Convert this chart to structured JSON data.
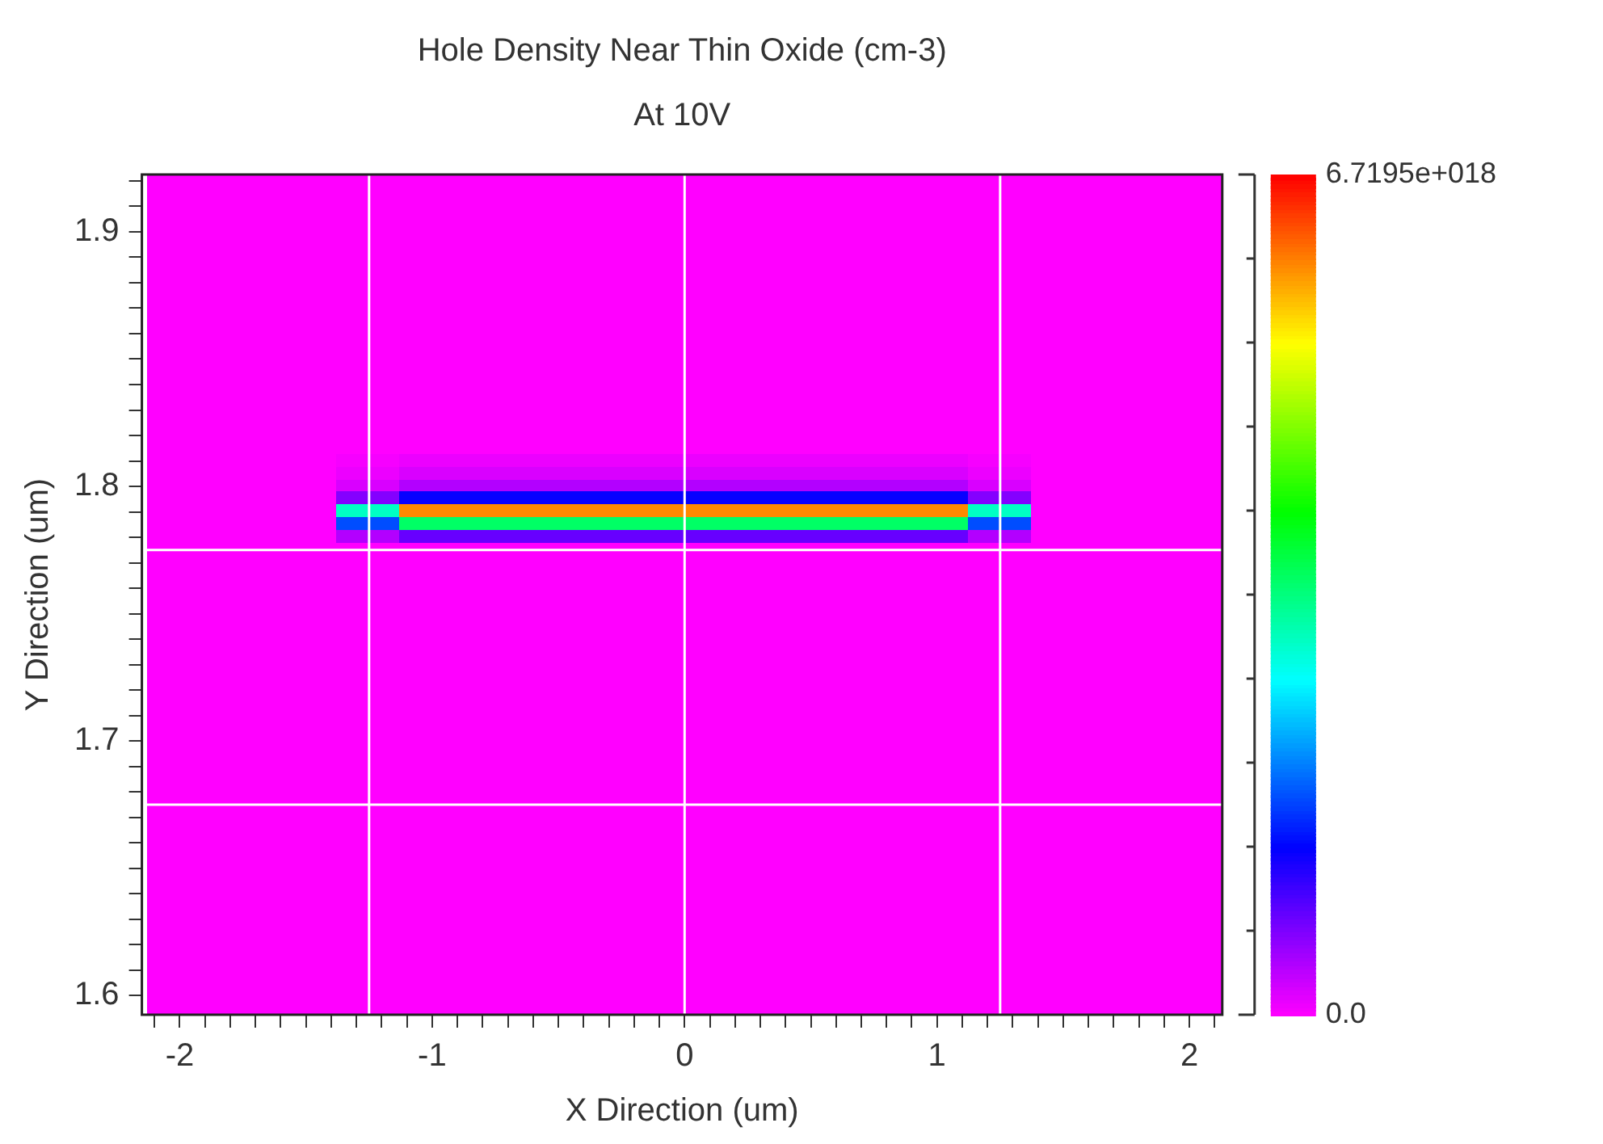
{
  "chart_data": {
    "type": "heatmap",
    "title": "Hole Density Near Thin Oxide (cm-3)",
    "subtitle": "At 10V",
    "xlabel": "X Direction (um)",
    "ylabel": "Y Direction (um)",
    "x": [
      -2,
      -1.75,
      -1.5,
      -1.25,
      -1,
      -0.75,
      -0.5,
      -0.25,
      0,
      0.25,
      0.5,
      0.75,
      1,
      1.25,
      1.5,
      1.75,
      2
    ],
    "colors": [
      "#ff00ff",
      "#0000ff",
      "#00ffff",
      "#00ff00",
      "#ffff00",
      "#ff0000"
    ],
    "clim": [
      0,
      6.7195e+18
    ],
    "cticks": [
      {
        "value": 0,
        "label": "0.0"
      },
      {
        "value": 6.7195e+17,
        "label": null
      },
      {
        "value": 1.3439e+18,
        "label": null
      },
      {
        "value": 2.01585e+18,
        "label": null
      },
      {
        "value": 2.6878e+18,
        "label": null
      },
      {
        "value": 3.35975e+18,
        "label": null
      },
      {
        "value": 4.0317e+18,
        "label": null
      },
      {
        "value": 4.70365e+18,
        "label": null
      },
      {
        "value": 5.3756e+18,
        "label": null
      },
      {
        "value": 6.04755e+18,
        "label": null
      },
      {
        "value": 6.7195e+18,
        "label": "6.7195e+018"
      }
    ],
    "xlim": [
      -2.15,
      2.13
    ],
    "ylim": [
      1.5925,
      1.9225
    ],
    "xticks": [
      {
        "value": -2.1,
        "label": null
      },
      -2,
      {
        "value": -1.9,
        "label": null
      },
      {
        "value": -1.8,
        "label": null
      },
      {
        "value": -1.7,
        "label": null
      },
      {
        "value": -1.6,
        "label": null
      },
      {
        "value": -1.5,
        "label": null
      },
      {
        "value": -1.4,
        "label": null
      },
      {
        "value": -1.3,
        "label": null
      },
      {
        "value": -1.2,
        "label": null
      },
      {
        "value": -1.1,
        "label": null
      },
      -1,
      {
        "value": -0.9,
        "label": null
      },
      {
        "value": -0.8,
        "label": null
      },
      {
        "value": -0.7,
        "label": null
      },
      {
        "value": -0.6,
        "label": null
      },
      {
        "value": -0.5,
        "label": null
      },
      {
        "value": -0.4,
        "label": null
      },
      {
        "value": -0.3,
        "label": null
      },
      {
        "value": -0.2,
        "label": null
      },
      {
        "value": -0.1,
        "label": null
      },
      0,
      {
        "value": 0.1,
        "label": null
      },
      {
        "value": 0.2,
        "label": null
      },
      {
        "value": 0.3,
        "label": null
      },
      {
        "value": 0.4,
        "label": null
      },
      {
        "value": 0.5,
        "label": null
      },
      {
        "value": 0.6,
        "label": null
      },
      {
        "value": 0.7,
        "label": null
      },
      {
        "value": 0.8,
        "label": null
      },
      {
        "value": 0.9,
        "label": null
      },
      1,
      {
        "value": 1.1,
        "label": null
      },
      {
        "value": 1.2,
        "label": null
      },
      {
        "value": 1.3,
        "label": null
      },
      {
        "value": 1.4,
        "label": null
      },
      {
        "value": 1.5,
        "label": null
      },
      {
        "value": 1.6,
        "label": null
      },
      {
        "value": 1.7,
        "label": null
      },
      {
        "value": 1.8,
        "label": null
      },
      {
        "value": 1.9,
        "label": null
      },
      2,
      {
        "value": 2.1,
        "label": null
      }
    ],
    "yticks": [
      1.6,
      {
        "value": 1.61,
        "label": null
      },
      {
        "value": 1.62,
        "label": null
      },
      {
        "value": 1.63,
        "label": null
      },
      {
        "value": 1.64,
        "label": null
      },
      {
        "value": 1.65,
        "label": null
      },
      {
        "value": 1.66,
        "label": null
      },
      {
        "value": 1.67,
        "label": null
      },
      {
        "value": 1.68,
        "label": null
      },
      {
        "value": 1.69,
        "label": null
      },
      1.7,
      {
        "value": 1.71,
        "label": null
      },
      {
        "value": 1.72,
        "label": null
      },
      {
        "value": 1.73,
        "label": null
      },
      {
        "value": 1.74,
        "label": null
      },
      {
        "value": 1.75,
        "label": null
      },
      {
        "value": 1.76,
        "label": null
      },
      {
        "value": 1.77,
        "label": null
      },
      {
        "value": 1.78,
        "label": null
      },
      {
        "value": 1.79,
        "label": null
      },
      1.8,
      {
        "value": 1.81,
        "label": null
      },
      {
        "value": 1.82,
        "label": null
      },
      {
        "value": 1.83,
        "label": null
      },
      {
        "value": 1.84,
        "label": null
      },
      {
        "value": 1.85,
        "label": null
      },
      {
        "value": 1.86,
        "label": null
      },
      {
        "value": 1.87,
        "label": null
      },
      {
        "value": 1.88,
        "label": null
      },
      {
        "value": 1.89,
        "label": null
      },
      1.9,
      {
        "value": 1.91,
        "label": null
      },
      {
        "value": 1.92,
        "label": null
      }
    ],
    "ref_lines": [
      {
        "axis": "x",
        "value": -1.25,
        "color": "#ffffff"
      },
      {
        "axis": "x",
        "value": 0,
        "color": "#ffffff"
      },
      {
        "axis": "x",
        "value": 1.25,
        "color": "#ffffff"
      },
      {
        "axis": "y",
        "value": 1.775,
        "color": "#ffffff"
      },
      {
        "axis": "y",
        "value": 1.675,
        "color": "#ffffff"
      }
    ],
    "cells": [
      [
        0,
        0,
        0,
        0,
        0,
        0,
        0,
        0,
        0,
        0,
        0,
        0,
        0,
        0,
        0,
        0,
        0
      ],
      [
        0,
        0,
        0,
        0,
        0,
        0,
        0,
        0,
        0,
        0,
        0,
        0,
        0,
        0,
        0,
        0,
        0
      ],
      [
        0,
        0,
        0,
        0,
        0,
        0,
        0,
        0,
        0,
        0,
        0,
        0,
        0,
        0,
        0,
        0,
        0
      ],
      [
        0,
        0,
        0,
        0,
        0,
        0,
        0,
        0,
        0,
        0,
        0,
        0,
        0,
        0,
        0,
        0,
        0
      ],
      [
        0,
        0,
        0,
        0,
        0,
        0,
        0,
        0,
        0,
        0,
        0,
        0,
        0,
        0,
        0,
        0,
        0
      ],
      [
        0,
        0,
        0,
        0,
        0,
        0,
        0,
        0,
        0,
        0,
        0,
        0,
        0,
        0,
        0,
        0,
        0
      ],
      [
        0,
        0,
        0,
        0,
        0,
        0,
        0,
        0,
        0,
        0,
        0,
        0,
        0,
        0,
        0,
        0,
        0
      ],
      [
        0,
        0,
        0,
        0,
        0,
        0,
        0,
        0,
        0,
        0,
        0,
        0,
        0,
        0,
        0,
        0,
        0
      ],
      [
        0,
        0,
        0,
        0,
        0,
        0,
        0,
        0,
        0,
        0,
        0,
        0,
        0,
        0,
        0,
        0,
        0
      ],
      [
        0,
        0,
        0,
        0,
        0,
        0,
        0,
        0,
        0,
        0,
        0,
        0,
        0,
        0,
        0,
        0,
        0
      ],
      [
        0,
        0,
        0,
        0,
        0,
        0,
        0,
        0,
        0,
        0,
        0,
        0,
        0,
        0,
        0,
        0,
        0
      ],
      [
        0,
        0,
        0,
        0,
        0,
        0,
        0,
        0,
        0,
        0,
        0,
        0,
        0,
        0,
        0,
        0,
        0
      ],
      [
        0,
        0,
        0,
        0,
        0,
        0,
        0,
        0,
        0,
        0,
        0,
        0,
        0,
        0,
        0,
        0,
        0
      ],
      [
        0,
        0,
        0,
        0,
        0,
        0,
        0,
        0,
        0,
        0,
        0,
        0,
        0,
        0,
        0,
        0,
        0
      ],
      [
        0,
        0,
        0,
        0,
        0,
        0,
        0,
        0,
        0,
        0,
        0,
        0,
        0,
        0,
        0,
        0,
        0
      ],
      [
        0,
        0,
        0,
        0,
        0,
        0,
        0,
        0,
        0,
        0,
        0,
        0,
        0,
        0,
        0,
        0,
        0
      ],
      [
        0,
        0,
        0,
        0,
        0,
        0,
        0,
        0,
        0,
        0,
        0,
        0,
        0,
        0,
        0,
        0,
        0
      ],
      [
        0,
        0,
        0,
        0,
        0,
        0,
        0,
        0,
        0,
        0,
        0,
        0,
        0,
        0,
        0,
        0,
        0
      ],
      [
        0,
        0,
        0,
        0,
        0,
        0,
        0,
        0,
        0,
        0,
        0,
        0,
        0,
        0,
        0,
        0,
        0
      ],
      [
        0,
        0,
        0,
        0,
        0,
        0,
        0,
        0,
        0,
        0,
        0,
        0,
        0,
        0,
        0,
        0,
        0
      ],
      [
        0,
        0,
        0,
        0,
        0,
        0,
        0,
        0,
        0,
        0,
        0,
        0,
        0,
        0,
        0,
        0,
        0
      ],
      [
        0,
        0,
        0,
        0,
        0,
        0,
        0,
        0,
        0,
        0,
        0,
        0,
        0,
        0,
        0,
        0,
        0
      ],
      [
        0,
        0,
        0,
        5e+16,
        1e+17,
        1e+17,
        1e+17,
        1e+17,
        1e+17,
        1e+17,
        1e+17,
        1e+17,
        1e+17,
        5e+16,
        0,
        0,
        0
      ],
      [
        0,
        0,
        0,
        1e+17,
        2e+17,
        2e+17,
        2e+17,
        2e+17,
        2e+17,
        2e+17,
        2e+17,
        2e+17,
        2e+17,
        1e+17,
        0,
        0,
        0
      ],
      [
        0,
        0,
        0,
        2e+17,
        4e+17,
        4e+17,
        4e+17,
        4e+17,
        4e+17,
        4e+17,
        4e+17,
        4e+17,
        4e+17,
        2e+17,
        0,
        0,
        0
      ],
      [
        0,
        0,
        0,
        6.5e+17,
        1.3e+18,
        1.3e+18,
        1.3e+18,
        1.3e+18,
        1.3e+18,
        1.3e+18,
        1.3e+18,
        1.3e+18,
        1.3e+18,
        6.5e+17,
        0,
        0,
        0
      ],
      [
        0,
        0,
        0,
        3e+18,
        6e+18,
        6e+18,
        6e+18,
        6e+18,
        6e+18,
        6e+18,
        6e+18,
        6e+18,
        6e+18,
        3e+18,
        0,
        0,
        0
      ],
      [
        0,
        0,
        0,
        1.75e+18,
        3.5e+18,
        3.5e+18,
        3.5e+18,
        3.5e+18,
        3.5e+18,
        3.5e+18,
        3.5e+18,
        3.5e+18,
        3.5e+18,
        1.75e+18,
        0,
        0,
        0
      ],
      [
        0,
        0,
        0,
        4e+17,
        8e+17,
        8e+17,
        8e+17,
        8e+17,
        8e+17,
        8e+17,
        8e+17,
        8e+17,
        8e+17,
        4e+17,
        0,
        0,
        0
      ],
      [
        0,
        0,
        0,
        0,
        0,
        0,
        0,
        0,
        0,
        0,
        0,
        0,
        0,
        0,
        0,
        0,
        0
      ],
      [
        0,
        0,
        0,
        0,
        0,
        0,
        0,
        0,
        0,
        0,
        0,
        0,
        0,
        0,
        0,
        0,
        0
      ],
      [
        0,
        0,
        0,
        0,
        0,
        0,
        0,
        0,
        0,
        0,
        0,
        0,
        0,
        0,
        0,
        0,
        0
      ],
      [
        0,
        0,
        0,
        0,
        0,
        0,
        0,
        0,
        0,
        0,
        0,
        0,
        0,
        0,
        0,
        0,
        0
      ],
      [
        0,
        0,
        0,
        0,
        0,
        0,
        0,
        0,
        0,
        0,
        0,
        0,
        0,
        0,
        0,
        0,
        0
      ],
      [
        0,
        0,
        0,
        0,
        0,
        0,
        0,
        0,
        0,
        0,
        0,
        0,
        0,
        0,
        0,
        0,
        0
      ],
      [
        0,
        0,
        0,
        0,
        0,
        0,
        0,
        0,
        0,
        0,
        0,
        0,
        0,
        0,
        0,
        0,
        0
      ],
      [
        0,
        0,
        0,
        0,
        0,
        0,
        0,
        0,
        0,
        0,
        0,
        0,
        0,
        0,
        0,
        0,
        0
      ],
      [
        0,
        0,
        0,
        0,
        0,
        0,
        0,
        0,
        0,
        0,
        0,
        0,
        0,
        0,
        0,
        0,
        0
      ],
      [
        0,
        0,
        0,
        0,
        0,
        0,
        0,
        0,
        0,
        0,
        0,
        0,
        0,
        0,
        0,
        0,
        0
      ],
      [
        0,
        0,
        0,
        0,
        0,
        0,
        0,
        0,
        0,
        0,
        0,
        0,
        0,
        0,
        0,
        0,
        0
      ],
      [
        0,
        0,
        0,
        0,
        0,
        0,
        0,
        0,
        0,
        0,
        0,
        0,
        0,
        0,
        0,
        0,
        0
      ],
      [
        0,
        0,
        0,
        0,
        0,
        0,
        0,
        0,
        0,
        0,
        0,
        0,
        0,
        0,
        0,
        0,
        0
      ],
      [
        0,
        0,
        0,
        0,
        0,
        0,
        0,
        0,
        0,
        0,
        0,
        0,
        0,
        0,
        0,
        0,
        0
      ],
      [
        0,
        0,
        0,
        0,
        0,
        0,
        0,
        0,
        0,
        0,
        0,
        0,
        0,
        0,
        0,
        0,
        0
      ],
      [
        0,
        0,
        0,
        0,
        0,
        0,
        0,
        0,
        0,
        0,
        0,
        0,
        0,
        0,
        0,
        0,
        0
      ],
      [
        0,
        0,
        0,
        0,
        0,
        0,
        0,
        0,
        0,
        0,
        0,
        0,
        0,
        0,
        0,
        0,
        0
      ],
      [
        0,
        0,
        0,
        0,
        0,
        0,
        0,
        0,
        0,
        0,
        0,
        0,
        0,
        0,
        0,
        0,
        0
      ],
      [
        0,
        0,
        0,
        0,
        0,
        0,
        0,
        0,
        0,
        0,
        0,
        0,
        0,
        0,
        0,
        0,
        0
      ],
      [
        0,
        0,
        0,
        0,
        0,
        0,
        0,
        0,
        0,
        0,
        0,
        0,
        0,
        0,
        0,
        0,
        0
      ],
      [
        0,
        0,
        0,
        0,
        0,
        0,
        0,
        0,
        0,
        0,
        0,
        0,
        0,
        0,
        0,
        0,
        0
      ],
      [
        0,
        0,
        0,
        0,
        0,
        0,
        0,
        0,
        0,
        0,
        0,
        0,
        0,
        0,
        0,
        0,
        0
      ],
      [
        0,
        0,
        0,
        0,
        0,
        0,
        0,
        0,
        0,
        0,
        0,
        0,
        0,
        0,
        0,
        0,
        0
      ],
      [
        0,
        0,
        0,
        0,
        0,
        0,
        0,
        0,
        0,
        0,
        0,
        0,
        0,
        0,
        0,
        0,
        0
      ],
      [
        0,
        0,
        0,
        0,
        0,
        0,
        0,
        0,
        0,
        0,
        0,
        0,
        0,
        0,
        0,
        0,
        0
      ],
      [
        0,
        0,
        0,
        0,
        0,
        0,
        0,
        0,
        0,
        0,
        0,
        0,
        0,
        0,
        0,
        0,
        0
      ],
      [
        0,
        0,
        0,
        0,
        0,
        0,
        0,
        0,
        0,
        0,
        0,
        0,
        0,
        0,
        0,
        0,
        0
      ],
      [
        0,
        0,
        0,
        0,
        0,
        0,
        0,
        0,
        0,
        0,
        0,
        0,
        0,
        0,
        0,
        0,
        0
      ],
      [
        0,
        0,
        0,
        0,
        0,
        0,
        0,
        0,
        0,
        0,
        0,
        0,
        0,
        0,
        0,
        0,
        0
      ],
      [
        0,
        0,
        0,
        0,
        0,
        0,
        0,
        0,
        0,
        0,
        0,
        0,
        0,
        0,
        0,
        0,
        0
      ],
      [
        0,
        0,
        0,
        0,
        0,
        0,
        0,
        0,
        0,
        0,
        0,
        0,
        0,
        0,
        0,
        0,
        0
      ],
      [
        0,
        0,
        0,
        0,
        0,
        0,
        0,
        0,
        0,
        0,
        0,
        0,
        0,
        0,
        0,
        0,
        0
      ],
      [
        0,
        0,
        0,
        0,
        0,
        0,
        0,
        0,
        0,
        0,
        0,
        0,
        0,
        0,
        0,
        0,
        0
      ],
      [
        0,
        0,
        0,
        0,
        0,
        0,
        0,
        0,
        0,
        0,
        0,
        0,
        0,
        0,
        0,
        0,
        0
      ],
      [
        0,
        0,
        0,
        0,
        0,
        0,
        0,
        0,
        0,
        0,
        0,
        0,
        0,
        0,
        0,
        0,
        0
      ],
      [
        0,
        0,
        0,
        0,
        0,
        0,
        0,
        0,
        0,
        0,
        0,
        0,
        0,
        0,
        0,
        0,
        0
      ],
      [
        0,
        0,
        0,
        0,
        0,
        0,
        0,
        0,
        0,
        0,
        0,
        0,
        0,
        0,
        0,
        0,
        0
      ]
    ]
  }
}
